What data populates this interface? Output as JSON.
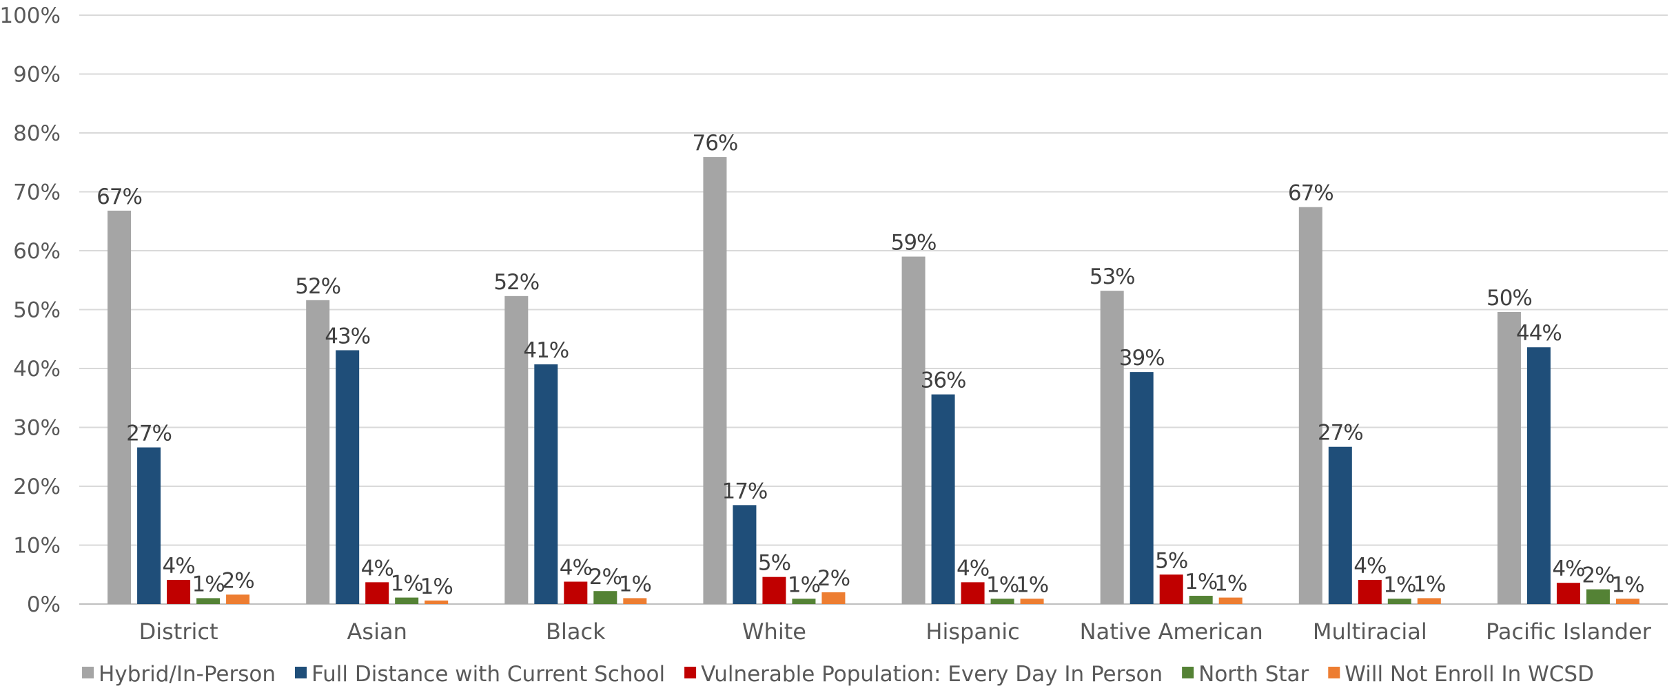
{
  "chart_data": {
    "type": "bar",
    "title": "",
    "xlabel": "",
    "ylabel": "",
    "ylim": [
      0,
      100
    ],
    "yticks": [
      "0%",
      "10%",
      "20%",
      "30%",
      "40%",
      "50%",
      "60%",
      "70%",
      "80%",
      "90%",
      "100%"
    ],
    "grid": true,
    "legend_position": "bottom",
    "categories": [
      "District",
      "Asian",
      "Black",
      "White",
      "Hispanic",
      "Native American",
      "Multiracial",
      "Pacific Islander"
    ],
    "series": [
      {
        "name": "Hybrid/In-Person",
        "color": "#a5a5a5",
        "values": [
          66.8,
          51.6,
          52.3,
          75.9,
          59.0,
          53.2,
          67.4,
          49.6
        ],
        "labels": [
          "67%",
          "52%",
          "52%",
          "76%",
          "59%",
          "53%",
          "67%",
          "50%"
        ]
      },
      {
        "name": "Full Distance with Current School",
        "color": "#1f4e79",
        "values": [
          26.6,
          43.1,
          40.7,
          16.8,
          35.6,
          39.4,
          26.7,
          43.6
        ],
        "labels": [
          "27%",
          "43%",
          "41%",
          "17%",
          "36%",
          "39%",
          "27%",
          "44%"
        ]
      },
      {
        "name": "Vulnerable Population: Every Day In Person",
        "color": "#c00000",
        "values": [
          4.1,
          3.7,
          3.8,
          4.6,
          3.7,
          5.0,
          4.1,
          3.6
        ],
        "labels": [
          "4%",
          "4%",
          "4%",
          "5%",
          "4%",
          "5%",
          "4%",
          "4%"
        ]
      },
      {
        "name": "North Star",
        "color": "#548235",
        "values": [
          1.0,
          1.1,
          2.2,
          0.9,
          0.9,
          1.4,
          0.9,
          2.5
        ],
        "labels": [
          "1%",
          "1%",
          "2%",
          "1%",
          "1%",
          "1%",
          "1%",
          "2%"
        ]
      },
      {
        "name": "Will Not Enroll In WCSD",
        "color": "#ed7d31",
        "values": [
          1.6,
          0.6,
          1.0,
          2.0,
          0.9,
          1.1,
          1.0,
          0.9
        ],
        "labels": [
          "2%",
          "1%",
          "1%",
          "2%",
          "1%",
          "1%",
          "1%",
          "1%"
        ]
      }
    ]
  }
}
